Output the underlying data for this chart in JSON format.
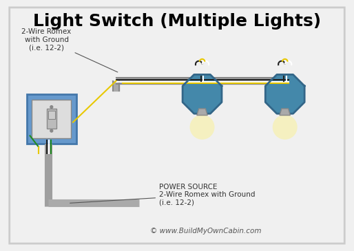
{
  "title": "Light Switch (Multiple Lights)",
  "bg_color": "#f0f0f0",
  "border_color": "#cccccc",
  "text_top_romex": "2-Wire Romex\nwith Ground\n(i.e. 12-2)",
  "text_bottom_romex": "POWER SOURCE\n2-Wire Romex with Ground\n(i.e. 12-2)",
  "copyright": "© www.BuildMyOwnCabin.com",
  "wire_gray": "#999999",
  "wire_white": "#dddddd",
  "wire_black": "#222222",
  "wire_yellow": "#e8c800",
  "wire_green": "#228B22",
  "conduit_color": "#aaaaaa",
  "box_color": "#6699cc",
  "box_color_dark": "#4477aa",
  "light_blue": "#88aacc",
  "light_globe_color": "#f5f0c0",
  "octagon_color": "#4488aa",
  "switch_color": "#dddddd"
}
